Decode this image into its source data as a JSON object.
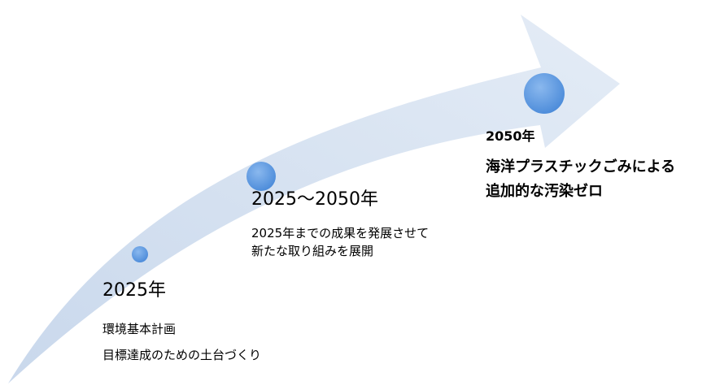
{
  "colors": {
    "arrow_fill": "#c9d8ec",
    "arrow_fill_light": "#e4ecf6",
    "dot_fill": "#4a8ad9",
    "dot_highlight": "#8ab8ee",
    "text": "#000000"
  },
  "milestones": [
    {
      "year": "2025年",
      "lines": [
        "環境基本計画",
        "目標達成のための土台づくり"
      ]
    },
    {
      "year": "2025〜2050年",
      "lines": [
        "2025年までの成果を発展させて",
        "新たな取り組みを展開"
      ]
    },
    {
      "year": "2050年",
      "lines": [
        "海洋プラスチックごみによる",
        "追加的な汚染ゼロ"
      ]
    }
  ]
}
